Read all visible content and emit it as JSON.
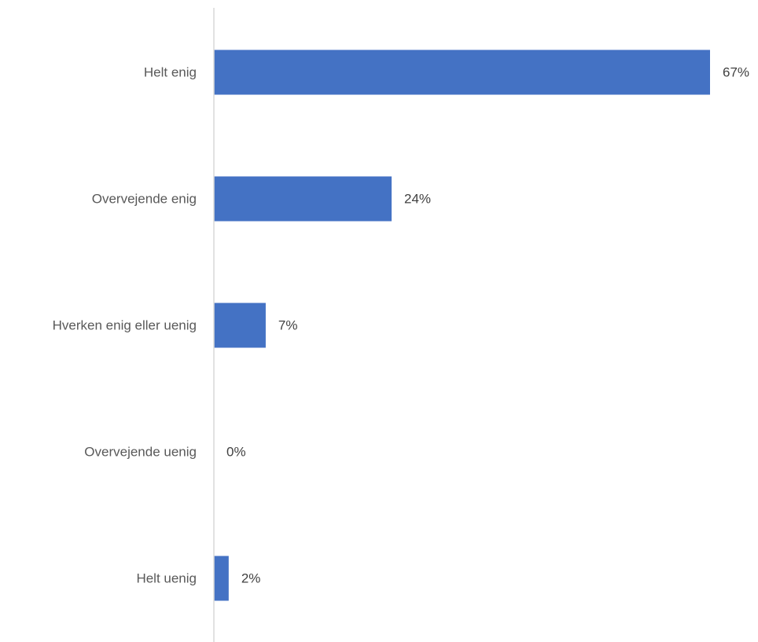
{
  "colors": {
    "bar": "#4472c4",
    "axis": "#d9d9d9",
    "category_text": "#595959",
    "value_text": "#404040"
  },
  "chart_data": {
    "type": "bar",
    "orientation": "horizontal",
    "categories": [
      "Helt enig",
      "Overvejende enig",
      "Hverken enig eller uenig",
      "Overvejende uenig",
      "Helt uenig"
    ],
    "values": [
      67,
      24,
      7,
      0,
      2
    ],
    "data_labels": [
      "67%",
      "24%",
      "7%",
      "0%",
      "2%"
    ],
    "unit": "%",
    "xlim": [
      0,
      67
    ],
    "title": "",
    "xlabel": "",
    "ylabel": "",
    "grid": false,
    "legend": "none"
  }
}
